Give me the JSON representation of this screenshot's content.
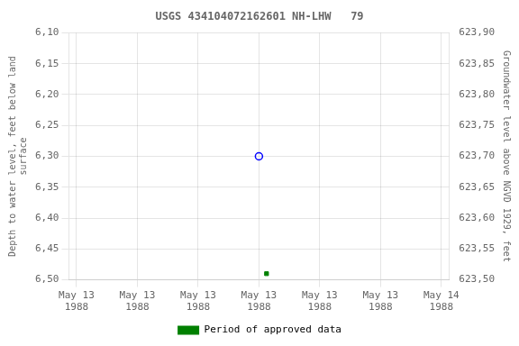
{
  "chart_data": {
    "type": "scatter",
    "title": "USGS 434104072162601 NH-LHW   79",
    "y_label": "Depth to water level, feet below land\nsurface",
    "y2_label": "Groundwater level above NGVD 1929, feet",
    "xlim": [
      -0.5,
      24.5
    ],
    "xticks": [
      {
        "value": 0,
        "label": "May 13\n1988"
      },
      {
        "value": 4,
        "label": "May 13\n1988"
      },
      {
        "value": 8,
        "label": "May 13\n1988"
      },
      {
        "value": 12,
        "label": "May 13\n1988"
      },
      {
        "value": 16,
        "label": "May 13\n1988"
      },
      {
        "value": 20,
        "label": "May 13\n1988"
      },
      {
        "value": 24,
        "label": "May 14\n1988"
      }
    ],
    "ylim": [
      6.5,
      6.1
    ],
    "yticks": [
      {
        "value": 6.1,
        "label": "6,10"
      },
      {
        "value": 6.15,
        "label": "6,15"
      },
      {
        "value": 6.2,
        "label": "6,20"
      },
      {
        "value": 6.25,
        "label": "6,25"
      },
      {
        "value": 6.3,
        "label": "6,30"
      },
      {
        "value": 6.35,
        "label": "6,35"
      },
      {
        "value": 6.4,
        "label": "6,40"
      },
      {
        "value": 6.45,
        "label": "6,45"
      },
      {
        "value": 6.5,
        "label": "6,50"
      }
    ],
    "y2lim": [
      623.5,
      623.9
    ],
    "y2ticks": [
      {
        "value": 623.9,
        "label": "623,90"
      },
      {
        "value": 623.85,
        "label": "623,85"
      },
      {
        "value": 623.8,
        "label": "623,80"
      },
      {
        "value": 623.75,
        "label": "623,75"
      },
      {
        "value": 623.7,
        "label": "623,70"
      },
      {
        "value": 623.65,
        "label": "623,65"
      },
      {
        "value": 623.6,
        "label": "623,60"
      },
      {
        "value": 623.55,
        "label": "623,55"
      },
      {
        "value": 623.5,
        "label": "623,50"
      }
    ],
    "grid": true,
    "legend": "bottom",
    "series": [
      {
        "color": "blue",
        "marker": "circle",
        "x": [
          12.0
        ],
        "values": [
          6.3
        ]
      },
      {
        "color": "green",
        "marker": "square",
        "x": [
          12.5
        ],
        "values": [
          6.49
        ]
      },
      {
        "name": "Period of approved data",
        "color": "#008000",
        "x": [],
        "values": []
      }
    ]
  }
}
